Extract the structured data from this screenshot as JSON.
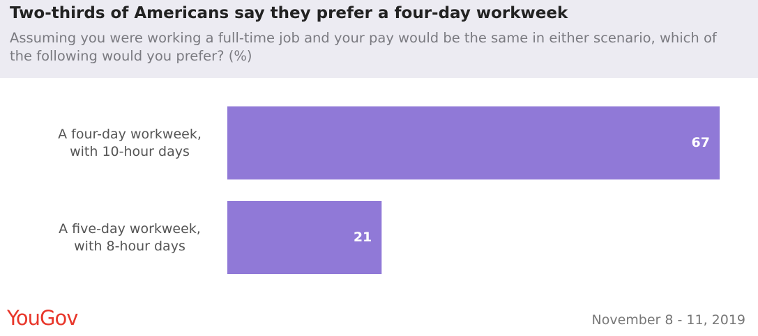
{
  "chart_data": {
    "type": "bar",
    "orientation": "horizontal",
    "title": "Two-thirds of Americans say they prefer a four-day workweek",
    "subtitle": "Assuming you were working a full-time job and your pay would be the same in either scenario, which of the following would you prefer? (%)",
    "categories": [
      "A four-day workweek, with 10-hour days",
      "A five-day workweek, with 8-hour days"
    ],
    "values": [
      67,
      21
    ],
    "color": "#9079d7",
    "source": "YouGov",
    "date": "November 8 - 11, 2019"
  }
}
